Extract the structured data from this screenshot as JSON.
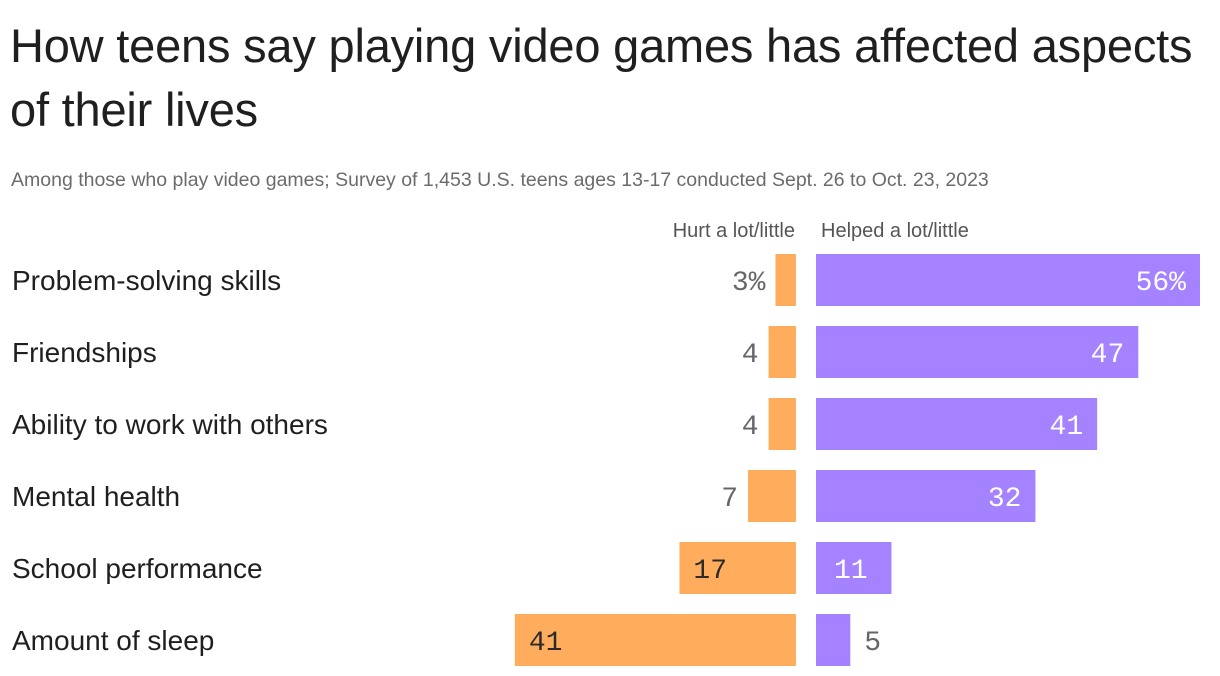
{
  "title": "How teens say playing video games has affected aspects of their lives",
  "subtitle": "Among those who play video games; Survey of 1,453 U.S. teens ages 13-17 conducted Sept. 26 to Oct. 23, 2023",
  "colors": {
    "hurt": "#FFAD5C",
    "helped": "#A582FF",
    "label_dark": "#2B2B2B",
    "label_light": "#FFFFFF",
    "label_outside": "#666666"
  },
  "chart_data": {
    "type": "bar",
    "orientation": "horizontal-diverging",
    "title": "How teens say playing video games has affected aspects of their lives",
    "subtitle": "Among those who play video games; Survey of 1,453 U.S. teens ages 13-17 conducted Sept. 26 to Oct. 23, 2023",
    "categories": [
      "Problem-solving skills",
      "Friendships",
      "Ability to work with others",
      "Mental health",
      "School performance",
      "Amount of sleep"
    ],
    "series": [
      {
        "name": "Hurt a lot/little",
        "values": [
          3,
          4,
          4,
          7,
          17,
          41
        ],
        "labels": [
          "3%",
          "4",
          "4",
          "7",
          "17",
          "41"
        ]
      },
      {
        "name": "Helped a lot/little",
        "values": [
          56,
          47,
          41,
          32,
          11,
          5
        ],
        "labels": [
          "56%",
          "47",
          "41",
          "32",
          "11",
          "5"
        ]
      }
    ],
    "unit": "%",
    "xlim": [
      0,
      56
    ]
  }
}
